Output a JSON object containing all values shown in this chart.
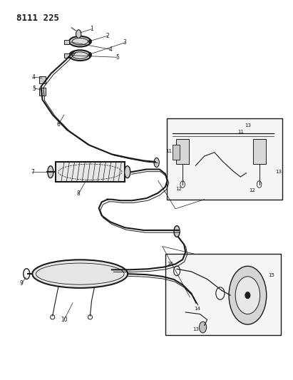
{
  "title": "8111 225",
  "background_color": "#ffffff",
  "line_color": "#1a1a1a",
  "figsize": [
    4.11,
    5.33
  ],
  "dpi": 100
}
